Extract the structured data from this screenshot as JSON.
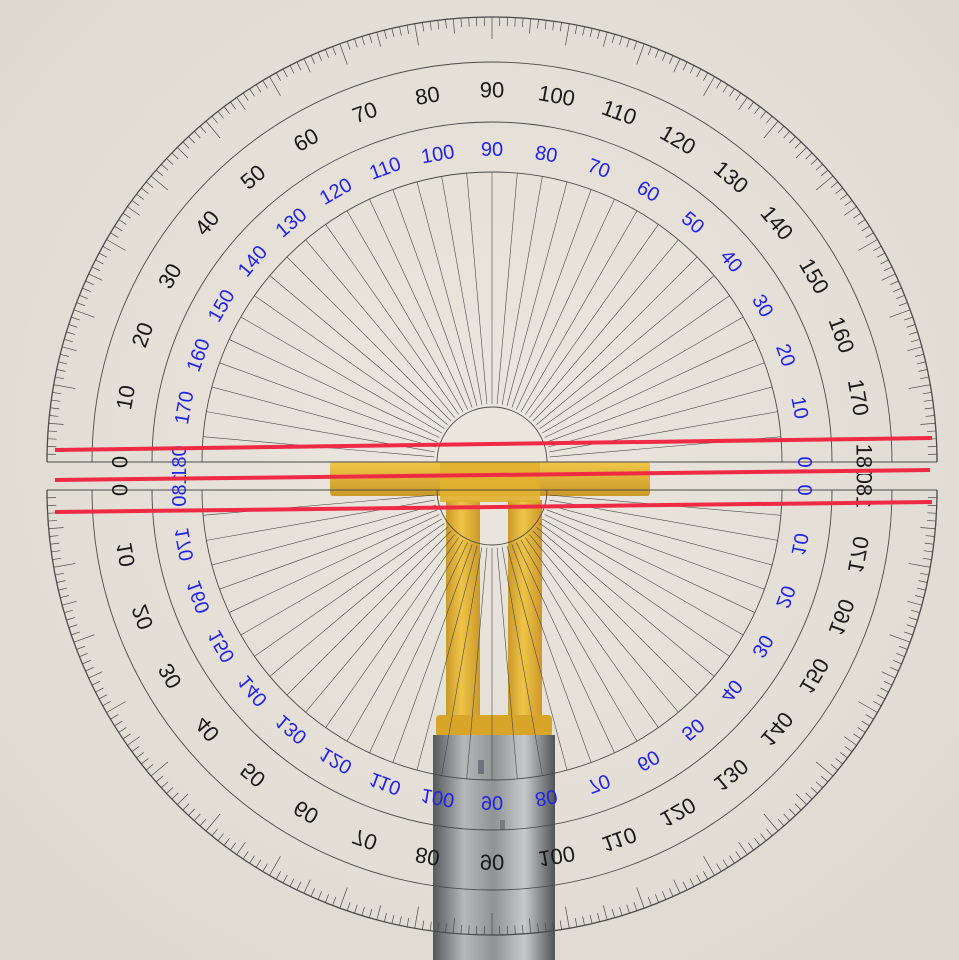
{
  "colors": {
    "background": "#e5e1d9",
    "protractor_line": "#4a4a4a",
    "outer_scale_text": "#1a1a1a",
    "inner_scale_text": "#2323e6",
    "red_line": "#ee2a45",
    "yellow_part": "#e6b62a",
    "metal_rod": "#8f9394"
  },
  "scene": {
    "upper_protractor": {
      "outer_labels": [
        "0",
        "10",
        "20",
        "30",
        "40",
        "50",
        "60",
        "70",
        "80",
        "90",
        "100",
        "110",
        "120",
        "130",
        "140",
        "150",
        "160",
        "170",
        "180"
      ],
      "inner_labels": [
        "180",
        "170",
        "160",
        "150",
        "140",
        "130",
        "120",
        "110",
        "100",
        "90",
        "80",
        "70",
        "60",
        "50",
        "40",
        "30",
        "20",
        "10",
        "0"
      ]
    },
    "lower_protractor_mirrored": {
      "outer_labels": [
        "0",
        "10",
        "20",
        "30",
        "40",
        "50",
        "60",
        "70",
        "80",
        "90",
        "100",
        "110",
        "120",
        "130",
        "140",
        "150",
        "160",
        "170",
        "180"
      ],
      "inner_labels": [
        "180",
        "170",
        "160",
        "150",
        "140",
        "130",
        "120",
        "110",
        "100",
        "90",
        "80",
        "70",
        "60",
        "50",
        "40",
        "30",
        "20",
        "10",
        "0"
      ]
    },
    "icons": [
      "protractor-icon",
      "red-reference-line-icon",
      "yellow-t-bracket-icon",
      "metal-rod-icon"
    ]
  }
}
